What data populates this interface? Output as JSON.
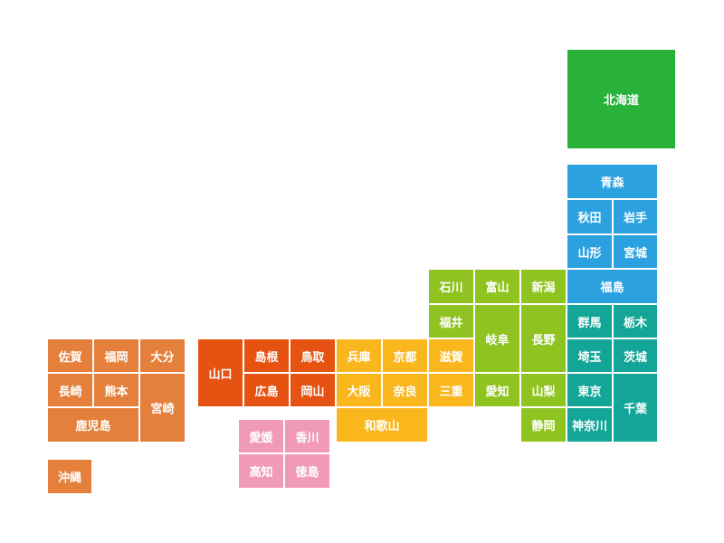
{
  "regions": {
    "hokkaido": {
      "color": "#28b23a"
    },
    "tohoku": {
      "color": "#2ca1e0"
    },
    "kanto": {
      "color": "#13a597"
    },
    "chubu": {
      "color": "#8fc31f"
    },
    "kinki": {
      "color": "#f9b71d"
    },
    "chugoku": {
      "color": "#e65212"
    },
    "shikoku": {
      "color": "#f09ab8"
    },
    "kyushu": {
      "color": "#e4803c"
    }
  },
  "prefectures": [
    {
      "id": "hokkaido",
      "name": "北海道",
      "region": "hokkaido"
    },
    {
      "id": "aomori",
      "name": "青森",
      "region": "tohoku"
    },
    {
      "id": "akita",
      "name": "秋田",
      "region": "tohoku"
    },
    {
      "id": "iwate",
      "name": "岩手",
      "region": "tohoku"
    },
    {
      "id": "yamagata",
      "name": "山形",
      "region": "tohoku"
    },
    {
      "id": "miyagi",
      "name": "宮城",
      "region": "tohoku"
    },
    {
      "id": "fukushima",
      "name": "福島",
      "region": "tohoku"
    },
    {
      "id": "gunma",
      "name": "群馬",
      "region": "kanto"
    },
    {
      "id": "tochigi",
      "name": "栃木",
      "region": "kanto"
    },
    {
      "id": "saitama",
      "name": "埼玉",
      "region": "kanto"
    },
    {
      "id": "ibaraki",
      "name": "茨城",
      "region": "kanto"
    },
    {
      "id": "tokyo",
      "name": "東京",
      "region": "kanto"
    },
    {
      "id": "chiba",
      "name": "千葉",
      "region": "kanto"
    },
    {
      "id": "kanagawa",
      "name": "神奈川",
      "region": "kanto"
    },
    {
      "id": "ishikawa",
      "name": "石川",
      "region": "chubu"
    },
    {
      "id": "toyama",
      "name": "富山",
      "region": "chubu"
    },
    {
      "id": "niigata",
      "name": "新潟",
      "region": "chubu"
    },
    {
      "id": "fukui",
      "name": "福井",
      "region": "chubu"
    },
    {
      "id": "gifu",
      "name": "岐阜",
      "region": "chubu"
    },
    {
      "id": "nagano",
      "name": "長野",
      "region": "chubu"
    },
    {
      "id": "aichi",
      "name": "愛知",
      "region": "chubu"
    },
    {
      "id": "yamanashi",
      "name": "山梨",
      "region": "chubu"
    },
    {
      "id": "shizuoka",
      "name": "静岡",
      "region": "chubu"
    },
    {
      "id": "hyogo",
      "name": "兵庫",
      "region": "kinki"
    },
    {
      "id": "kyoto",
      "name": "京都",
      "region": "kinki"
    },
    {
      "id": "shiga",
      "name": "滋賀",
      "region": "kinki"
    },
    {
      "id": "osaka",
      "name": "大阪",
      "region": "kinki"
    },
    {
      "id": "nara",
      "name": "奈良",
      "region": "kinki"
    },
    {
      "id": "mie",
      "name": "三重",
      "region": "kinki"
    },
    {
      "id": "wakayama",
      "name": "和歌山",
      "region": "kinki"
    },
    {
      "id": "yamaguchi",
      "name": "山口",
      "region": "chugoku"
    },
    {
      "id": "shimane",
      "name": "島根",
      "region": "chugoku"
    },
    {
      "id": "tottori",
      "name": "鳥取",
      "region": "chugoku"
    },
    {
      "id": "hiroshima",
      "name": "広島",
      "region": "chugoku"
    },
    {
      "id": "okayama",
      "name": "岡山",
      "region": "chugoku"
    },
    {
      "id": "ehime",
      "name": "愛媛",
      "region": "shikoku"
    },
    {
      "id": "kagawa",
      "name": "香川",
      "region": "shikoku"
    },
    {
      "id": "kochi",
      "name": "高知",
      "region": "shikoku"
    },
    {
      "id": "tokushima",
      "name": "徳島",
      "region": "shikoku"
    },
    {
      "id": "saga",
      "name": "佐賀",
      "region": "kyushu"
    },
    {
      "id": "fukuoka",
      "name": "福岡",
      "region": "kyushu"
    },
    {
      "id": "oita",
      "name": "大分",
      "region": "kyushu"
    },
    {
      "id": "nagasaki",
      "name": "長崎",
      "region": "kyushu"
    },
    {
      "id": "kumamoto",
      "name": "熊本",
      "region": "kyushu"
    },
    {
      "id": "miyazaki",
      "name": "宮崎",
      "region": "kyushu"
    },
    {
      "id": "kagoshima",
      "name": "鹿児島",
      "region": "kyushu"
    },
    {
      "id": "okinawa",
      "name": "沖縄",
      "region": "kyushu"
    }
  ]
}
